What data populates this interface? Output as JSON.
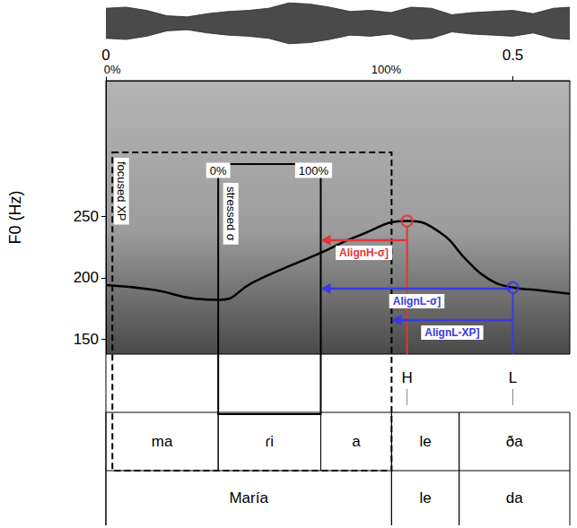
{
  "chart_data": {
    "type": "line",
    "y_label": "F0 (Hz)",
    "xlim": [
      0,
      0.57
    ],
    "xticks": [
      0,
      0.5
    ],
    "ylim": [
      138,
      360
    ],
    "yticks": [
      150,
      200,
      250
    ],
    "grid": false,
    "color": "#000000",
    "x": [
      0,
      0.06,
      0.11,
      0.14,
      0.18,
      0.22,
      0.26,
      0.31,
      0.37,
      0.41,
      0.445,
      0.47,
      0.5,
      0.53,
      0.57
    ],
    "values": [
      194,
      190,
      183,
      182,
      196,
      208,
      219,
      234,
      246,
      237,
      213,
      199,
      192,
      190,
      187
    ],
    "waveform": {
      "x": [
        0,
        0.025,
        0.05,
        0.075,
        0.1,
        0.125,
        0.15,
        0.175,
        0.2,
        0.225,
        0.25,
        0.275,
        0.3,
        0.325,
        0.35,
        0.375,
        0.4,
        0.425,
        0.45,
        0.475,
        0.5,
        0.525,
        0.55,
        0.57
      ],
      "amplitude": [
        0.7,
        0.75,
        0.6,
        0.35,
        0.3,
        0.45,
        0.55,
        0.6,
        0.7,
        0.95,
        0.9,
        0.75,
        0.55,
        0.6,
        0.5,
        0.75,
        0.7,
        0.4,
        0.5,
        0.55,
        0.6,
        0.45,
        0.7,
        0.75
      ],
      "amplitude_lim": [
        -1,
        1
      ],
      "color": "#2a2a2a"
    },
    "tones": [
      {
        "label": "H",
        "x": 0.37,
        "f0": 246,
        "color": "#e0353a"
      },
      {
        "label": "L",
        "x": 0.5,
        "f0": 192,
        "color": "#3a3ae0"
      }
    ],
    "focused_xp": {
      "label": "focused XP",
      "start": 0.008,
      "end": 0.351,
      "start_label": "0%",
      "end_label": "100%"
    },
    "stressed_syllable": {
      "label": "stressed σ",
      "start": 0.138,
      "end": 0.264,
      "start_label": "0%",
      "end_label": "100%"
    },
    "alignments": [
      {
        "label": "AlignH-σ]",
        "from": 0.37,
        "to": 0.264,
        "color": "#e0353a"
      },
      {
        "label": "AlignL-σ]",
        "from": 0.5,
        "to": 0.264,
        "color": "#3a3ae0"
      },
      {
        "label": "AlignL-XP]",
        "from": 0.5,
        "to": 0.351,
        "color": "#3a3ae0"
      }
    ],
    "segments": [
      {
        "label": "ma",
        "start": 0,
        "end": 0.138
      },
      {
        "label": "ɾi",
        "start": 0.138,
        "end": 0.264
      },
      {
        "label": "a",
        "start": 0.264,
        "end": 0.351
      },
      {
        "label": "le",
        "start": 0.351,
        "end": 0.434
      },
      {
        "label": "ða",
        "start": 0.434,
        "end": 0.57
      }
    ],
    "words": [
      {
        "label": "María",
        "start": 0,
        "end": 0.351
      },
      {
        "label": "le",
        "start": 0.351,
        "end": 0.434
      },
      {
        "label": "da",
        "start": 0.434,
        "end": 0.57
      }
    ]
  }
}
